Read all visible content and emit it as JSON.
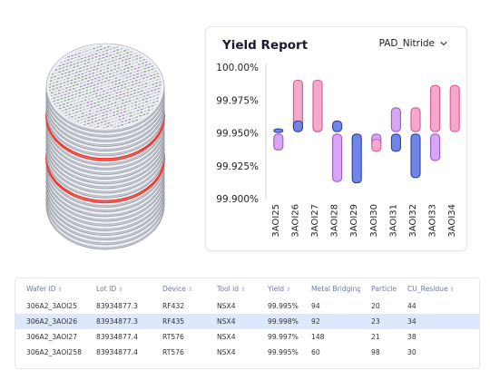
{
  "report": {
    "title": "Yield Report",
    "selector_label": "PAD_Nitride"
  },
  "colors": {
    "blue_fill": "#6f86e8",
    "blue_stroke": "#2d3f9a",
    "pink_fill": "#f4a9c9",
    "pink_stroke": "#d6549a",
    "violet_fill": "#d7a6f2",
    "violet_stroke": "#9b5bc9",
    "wafer_ring": "#ee3b33",
    "row_selected": "#dde8fa"
  },
  "chart_data": {
    "type": "bar",
    "categories": [
      "3AOI25",
      "3AOI26",
      "3AOI27",
      "3AOI28",
      "3AOI29",
      "3AOI30",
      "3AOI31",
      "3AOI32",
      "3AOI33",
      "3AOI34"
    ],
    "ylim": [
      99.9,
      100.0
    ],
    "yticks": [
      "100.00%",
      "99.975%",
      "99.950%",
      "99.925%",
      "99.900%"
    ],
    "ytick_values": [
      100.0,
      99.975,
      99.95,
      99.925,
      99.9
    ],
    "grid": false,
    "bars": [
      {
        "category": "3AOI25",
        "series": "blue",
        "from": 99.953,
        "to": 99.951
      },
      {
        "category": "3AOI25",
        "series": "violet",
        "from": 99.949,
        "to": 99.937
      },
      {
        "category": "3AOI26",
        "series": "pink",
        "from": 99.99,
        "to": 99.951
      },
      {
        "category": "3AOI26",
        "series": "blue",
        "from": 99.959,
        "to": 99.951
      },
      {
        "category": "3AOI27",
        "series": "violet",
        "from": 99.967,
        "to": 99.951
      },
      {
        "category": "3AOI27",
        "series": "pink",
        "from": 99.99,
        "to": 99.951
      },
      {
        "category": "3AOI28",
        "series": "blue",
        "from": 99.959,
        "to": 99.951
      },
      {
        "category": "3AOI28",
        "series": "violet",
        "from": 99.949,
        "to": 99.913
      },
      {
        "category": "3AOI29",
        "series": "pink",
        "from": 99.949,
        "to": 99.94
      },
      {
        "category": "3AOI29",
        "series": "blue",
        "from": 99.949,
        "to": 99.912
      },
      {
        "category": "3AOI30",
        "series": "violet",
        "from": 99.949,
        "to": 99.94
      },
      {
        "category": "3AOI30",
        "series": "pink",
        "from": 99.945,
        "to": 99.936
      },
      {
        "category": "3AOI31",
        "series": "blue",
        "from": 99.949,
        "to": 99.936
      },
      {
        "category": "3AOI31",
        "series": "violet",
        "from": 99.969,
        "to": 99.951
      },
      {
        "category": "3AOI32",
        "series": "pink",
        "from": 99.969,
        "to": 99.951
      },
      {
        "category": "3AOI32",
        "series": "blue",
        "from": 99.949,
        "to": 99.916
      },
      {
        "category": "3AOI33",
        "series": "violet",
        "from": 99.949,
        "to": 99.929
      },
      {
        "category": "3AOI33",
        "series": "pink",
        "from": 99.986,
        "to": 99.951
      }
    ]
  },
  "table": {
    "columns": [
      "Wafer ID",
      "Lot ID",
      "Device",
      "Tool id",
      "Yield",
      "Metal Bridging",
      "Particle",
      "CU_Residue"
    ],
    "rows": [
      [
        "306A2_3AOI25",
        "83934877.3",
        "RF432",
        "NSX4",
        "99.995%",
        "94",
        "20",
        "44"
      ],
      [
        "306A2_3AOI26",
        "83934877.3",
        "RF435",
        "NSX4",
        "99.998%",
        "92",
        "23",
        "34"
      ],
      [
        "306A2_3AOI27",
        "83934877.4",
        "RT576",
        "NSX4",
        "99.997%",
        "148",
        "21",
        "38"
      ],
      [
        "306A2_3AOI258",
        "83934877.4",
        "RT576",
        "NSX4",
        "99.995%",
        "60",
        "98",
        "30"
      ]
    ],
    "selected_row": 1
  }
}
